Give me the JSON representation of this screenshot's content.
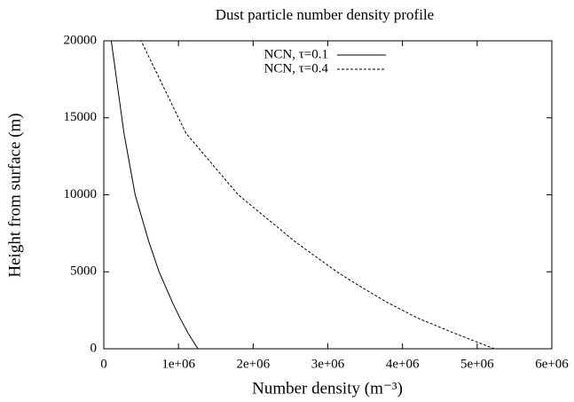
{
  "chart_data": {
    "type": "line",
    "title": "Dust particle number density profile",
    "xlabel": "Number density (m⁻³)",
    "ylabel": "Height from surface (m)",
    "xlim": [
      0,
      6000000
    ],
    "xticks": [
      0,
      {
        "value": 1000000,
        "label": "1e+06"
      },
      {
        "value": 2000000,
        "label": "2e+06"
      },
      {
        "value": 3000000,
        "label": "3e+06"
      },
      {
        "value": 4000000,
        "label": "4e+06"
      },
      {
        "value": 5000000,
        "label": "5e+06"
      },
      {
        "value": 6000000,
        "label": "6e+06"
      }
    ],
    "ylim": [
      0,
      20000
    ],
    "yticks": [
      0,
      5000,
      10000,
      15000,
      20000
    ],
    "legend": "top",
    "series": [
      {
        "name": "NCN, τ=0.1",
        "color": "#000000",
        "style": "solid",
        "x": [
          1260000,
          1130000,
          1020000,
          920000,
          830000,
          740000,
          600000,
          420000,
          270000,
          100000
        ],
        "values": [
          0,
          1000,
          2000,
          3000,
          4000,
          5000,
          7000,
          10000,
          14000,
          20000
        ]
      },
      {
        "name": "NCN, τ=0.4",
        "color": "#000000",
        "style": "dashed",
        "x": [
          5230000,
          4700000,
          4200000,
          3800000,
          3450000,
          3120000,
          2550000,
          1800000,
          1100000,
          500000
        ],
        "values": [
          0,
          1000,
          2000,
          3000,
          4000,
          5000,
          7000,
          10000,
          14000,
          20000
        ]
      }
    ]
  }
}
